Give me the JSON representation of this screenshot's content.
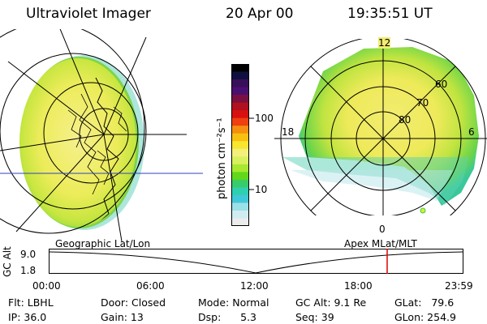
{
  "header": {
    "instrument": "Ultraviolet Imager",
    "date": "20 Apr 00",
    "time": "19:35:51 UT"
  },
  "colorbar": {
    "unit_label": "photon cm⁻²s⁻¹",
    "ticks": [
      "100",
      "10"
    ],
    "colors": [
      "#000000",
      "#101040",
      "#3a0f5a",
      "#4a1070",
      "#7a1040",
      "#b01020",
      "#d81010",
      "#ee4010",
      "#f58f10",
      "#f8c010",
      "#f8e630",
      "#f2f07a",
      "#d8f060",
      "#a8e830",
      "#62d81a",
      "#38cc6a",
      "#2ed0b0",
      "#40c8d8",
      "#9ae0e8",
      "#d0ecf0",
      "#ececec"
    ]
  },
  "polar": {
    "mlt_labels": {
      "top": "12",
      "left": "18",
      "right": "6",
      "bottom": "0"
    },
    "lat_labels": [
      "60",
      "70",
      "80"
    ]
  },
  "panels": {
    "left_caption": "Geographic Lat/Lon",
    "right_caption": "Apex MLat/MLT"
  },
  "timeline": {
    "ylabel": "GC Alt",
    "yticks": [
      "9.0",
      "1.8"
    ],
    "xticks": [
      "00:00",
      "06:00",
      "12:00",
      "18:00",
      "23:59"
    ],
    "marker_color": "#e00000",
    "marker_time_fraction": 0.816
  },
  "status": {
    "filter": "Flt: LBHL",
    "ip": "IP: 36.0",
    "door": "Door: Closed",
    "gain": "Gain: 13",
    "mode": "Mode: Normal",
    "dsp": "Dsp:      5.3",
    "gc_alt": "GC Alt: 9.1 Re",
    "seq": "Seq: 39",
    "glat": "GLat:   79.6",
    "glon": "GLon: 254.9"
  }
}
